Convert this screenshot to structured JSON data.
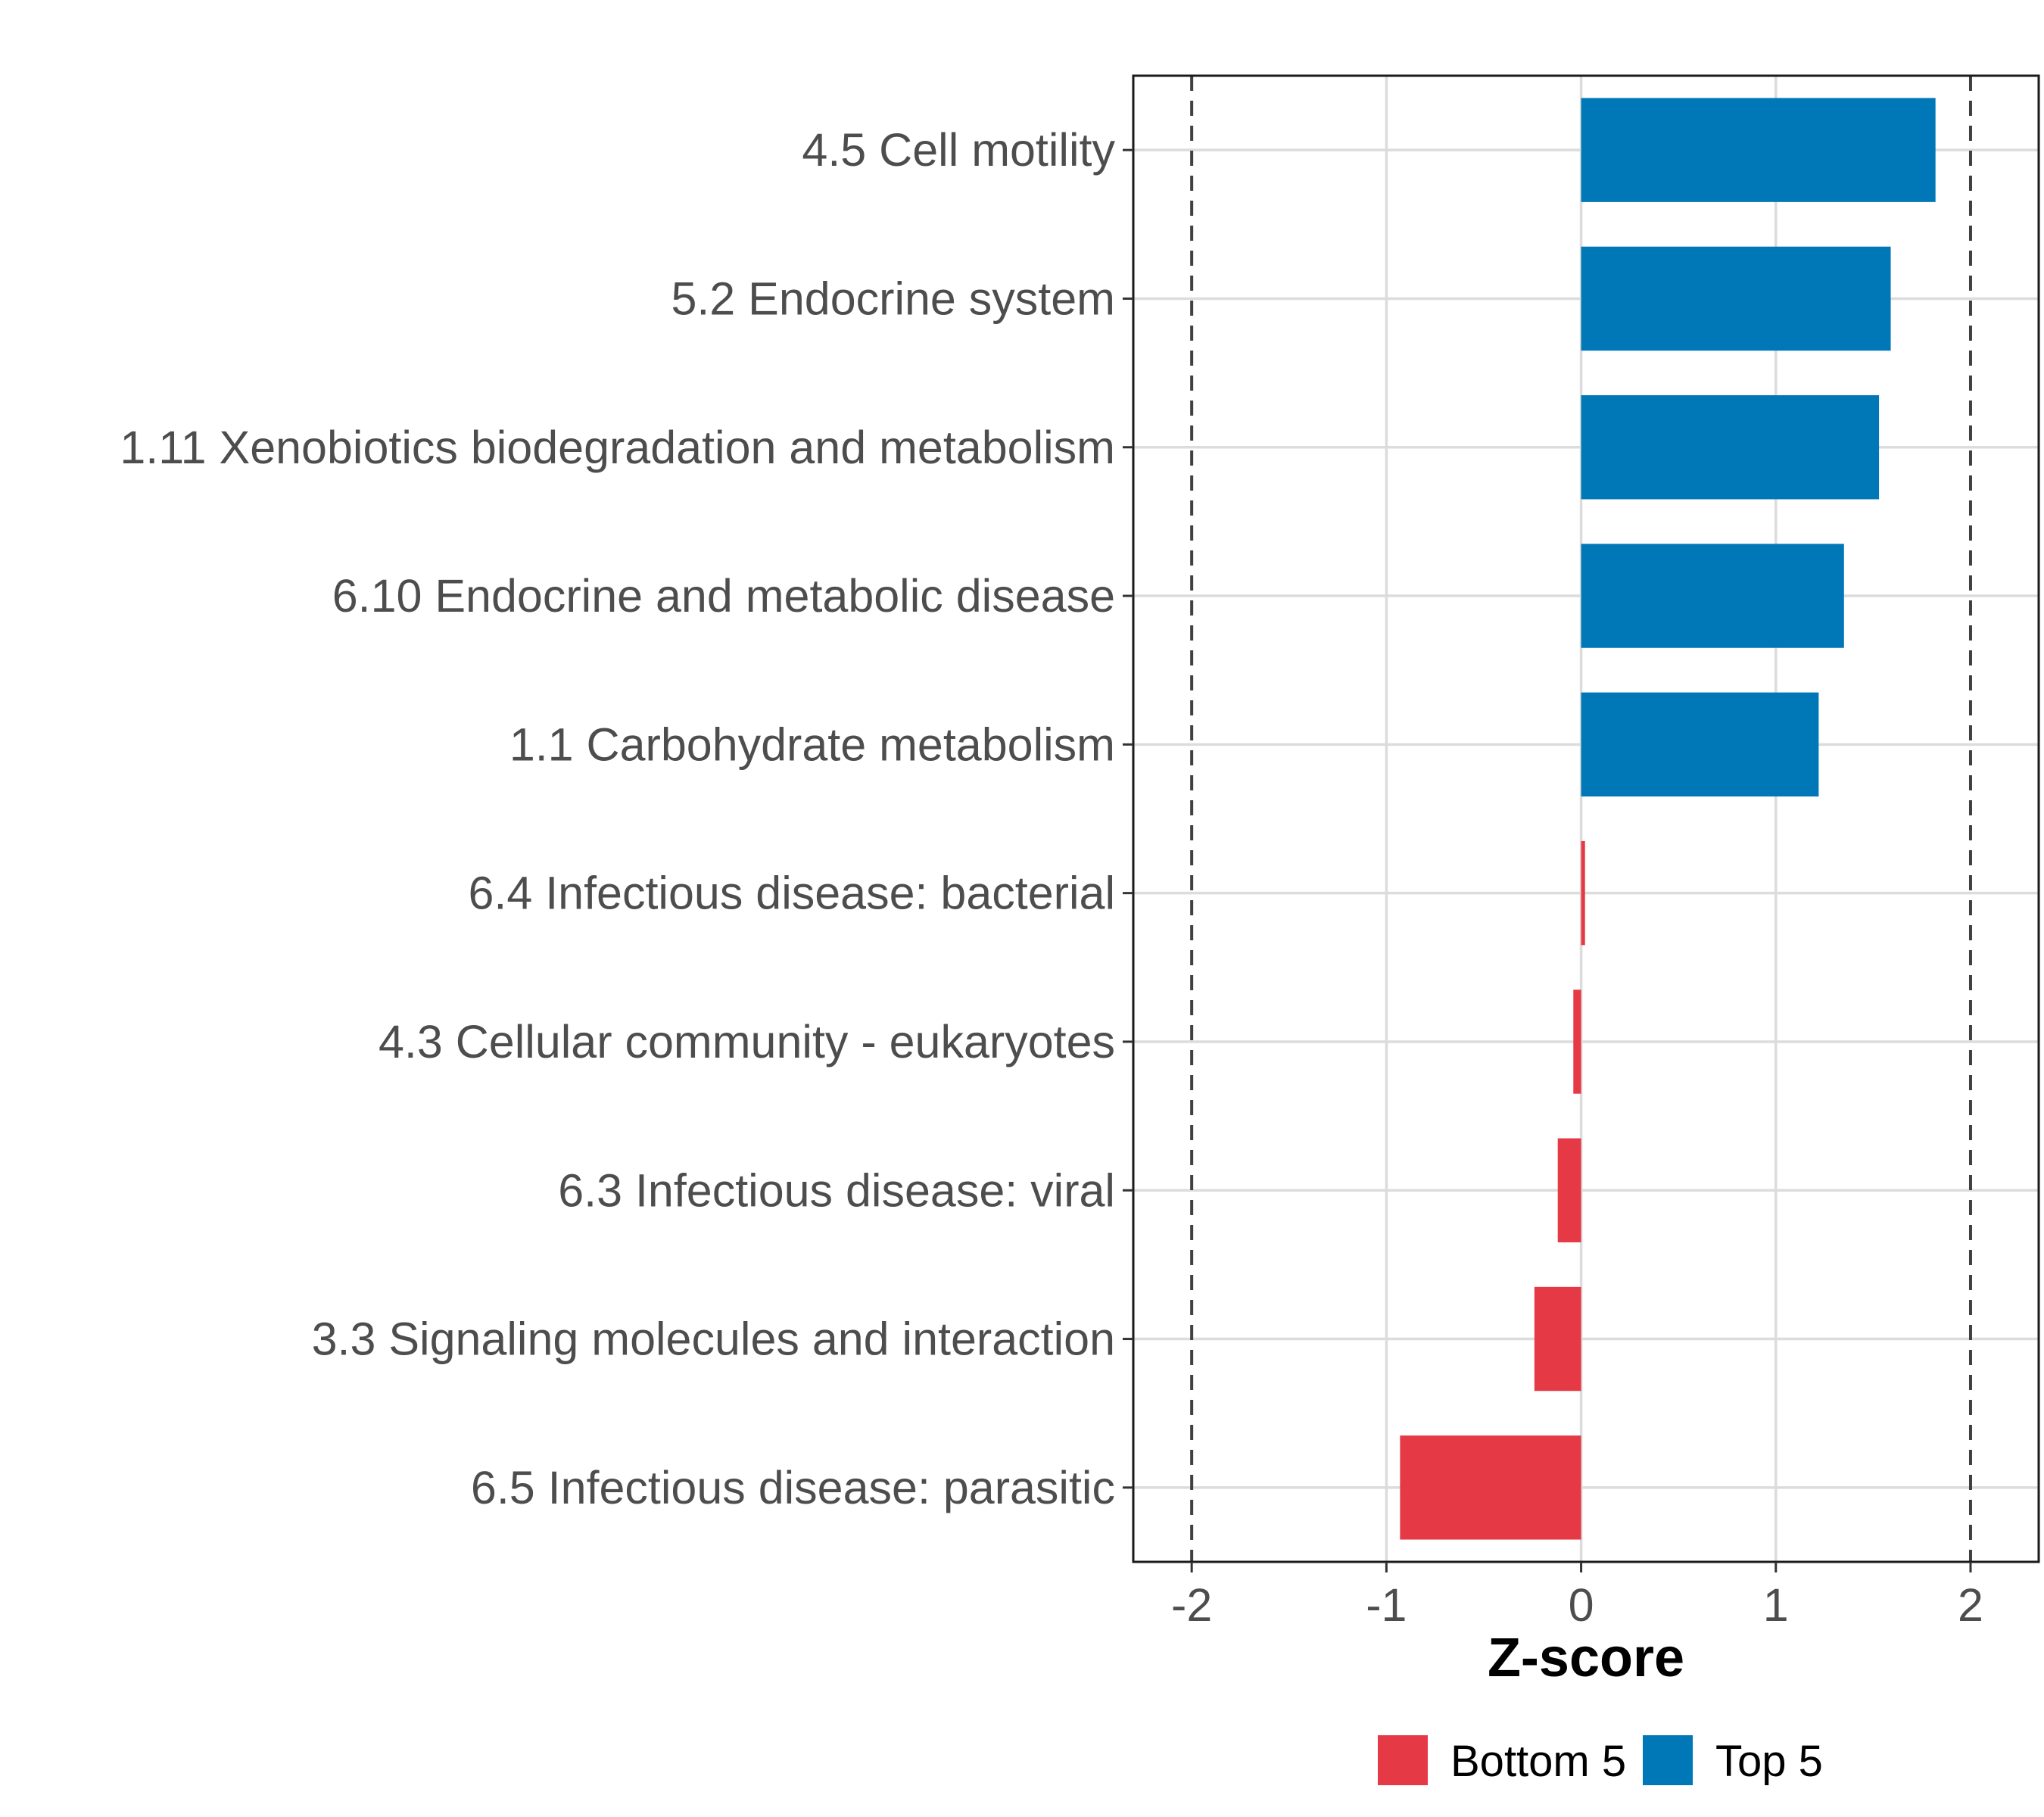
{
  "chart_data": {
    "type": "bar",
    "orientation": "horizontal",
    "title": "",
    "xlabel": "Z-score",
    "ylabel": "",
    "xlim": [
      -2.3,
      2.35
    ],
    "xticks": [
      -2,
      -1,
      0,
      1,
      2
    ],
    "xtick_labels": [
      "-2",
      "-1",
      "0",
      "1",
      "2"
    ],
    "reference_lines": [
      -2,
      2
    ],
    "grid": true,
    "legend_position": "bottom",
    "colors": {
      "Bottom 5": "#e63946",
      "Top 5": "#0077b6"
    },
    "categories": [
      "4.5 Cell motility",
      "5.2 Endocrine system",
      "1.11 Xenobiotics biodegradation and metabolism",
      "6.10 Endocrine and metabolic disease",
      "1.1 Carbohydrate metabolism",
      "6.4 Infectious disease: bacterial",
      "4.3 Cellular community - eukaryotes",
      "6.3 Infectious disease: viral",
      "3.3 Signaling molecules and interaction",
      "6.5 Infectious disease: parasitic"
    ],
    "values": [
      1.82,
      1.59,
      1.53,
      1.35,
      1.22,
      0.02,
      -0.04,
      -0.12,
      -0.24,
      -0.93
    ],
    "groups": [
      "Top 5",
      "Top 5",
      "Top 5",
      "Top 5",
      "Top 5",
      "Bottom 5",
      "Bottom 5",
      "Bottom 5",
      "Bottom 5",
      "Bottom 5"
    ],
    "legend": [
      {
        "label": "Bottom 5",
        "color": "#e63946"
      },
      {
        "label": "Top 5",
        "color": "#0077b6"
      }
    ]
  }
}
